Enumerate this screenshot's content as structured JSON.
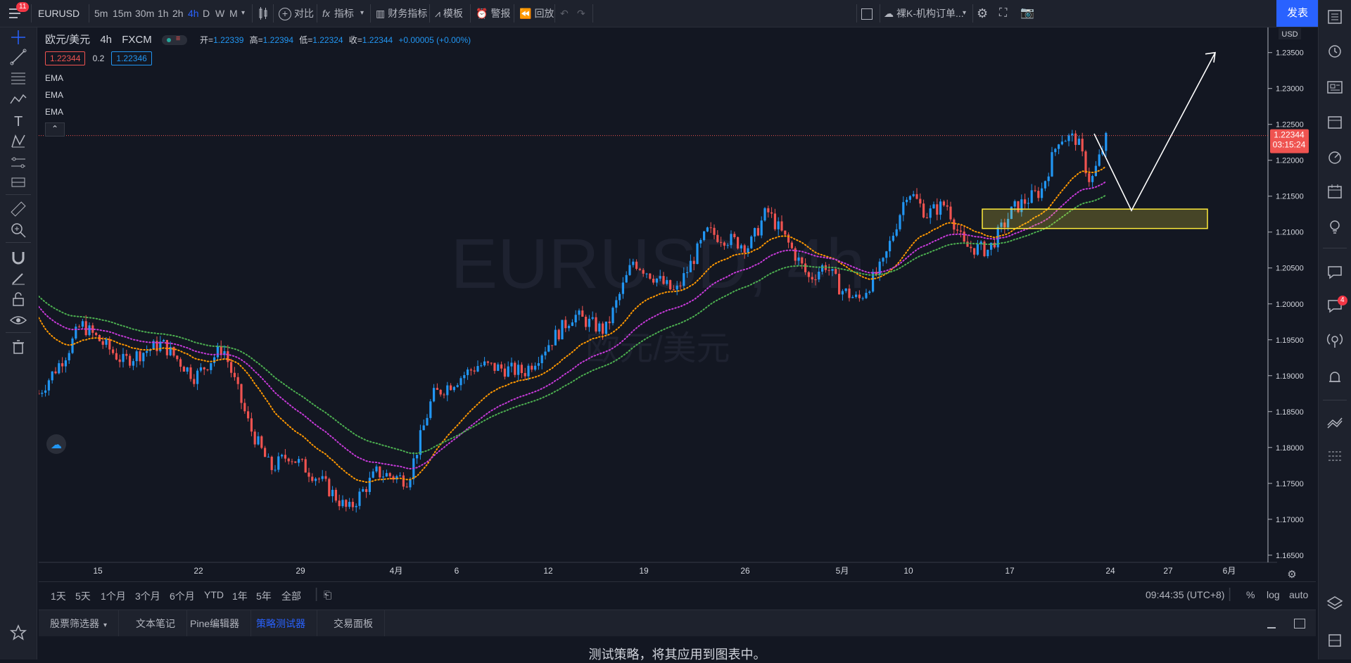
{
  "topbar": {
    "menu_badge": "11",
    "symbol": "EURUSD",
    "intervals": [
      "5m",
      "15m",
      "30m",
      "1h",
      "2h",
      "4h",
      "D",
      "W",
      "M"
    ],
    "active_interval": "4h",
    "compare": "对比",
    "indicators": "指标",
    "financials": "财务指标",
    "templates": "模板",
    "alert": "警报",
    "replay": "回放",
    "layout_name": "裸K-机构订单...",
    "publish": "发表"
  },
  "legend": {
    "title": "欧元/美元",
    "interval": "4h",
    "exchange": "FXCM",
    "open_label": "开=",
    "open": "1.22339",
    "high_label": "高=",
    "high": "1.22394",
    "low_label": "低=",
    "low": "1.22324",
    "close_label": "收=",
    "close": "1.22344",
    "change": "+0.00005 (+0.00%)",
    "bid": "1.22344",
    "spread": "0.2",
    "ask": "1.22346",
    "indicators": [
      "EMA",
      "EMA",
      "EMA"
    ]
  },
  "watermark": {
    "line1": "EURUSD, 4h",
    "line2": "欧元/美元"
  },
  "price_axis": {
    "currency": "USD",
    "ticks": [
      "1.23500",
      "1.23000",
      "1.22500",
      "1.22000",
      "1.21500",
      "1.21000",
      "1.20500",
      "1.20000",
      "1.19500",
      "1.19000",
      "1.18500",
      "1.18000",
      "1.17500",
      "1.17000",
      "1.16500"
    ],
    "last_price": "1.22344",
    "countdown": "03:15:24"
  },
  "time_axis": {
    "ticks": [
      "15",
      "22",
      "29",
      "4月",
      "6",
      "12",
      "19",
      "26",
      "5月",
      "10",
      "17",
      "24",
      "27",
      "6月"
    ]
  },
  "range_bar": {
    "ranges": [
      "1天",
      "5天",
      "1个月",
      "3个月",
      "6个月",
      "YTD",
      "1年",
      "5年",
      "全部"
    ],
    "clock": "09:44:35 (UTC+8)",
    "percent": "%",
    "log": "log",
    "auto": "auto"
  },
  "panel": {
    "tabs": [
      "股票筛选器",
      "文本笔记",
      "Pine编辑器",
      "策略测试器",
      "交易面板"
    ],
    "active_tab": "策略测试器",
    "message": "测试策略，将其应用到图表中。"
  },
  "right_badge": "4",
  "colors": {
    "bg": "#131722",
    "up": "#2196f3",
    "down": "#ef5350",
    "ema_fast": "#ff9800",
    "ema_mid": "#c63ad8",
    "ema_slow": "#4caf50",
    "zone": "#ffeb3b",
    "accent": "#2962ff"
  },
  "chart_data": {
    "type": "candlestick",
    "title": "EURUSD, 4h",
    "ylim": [
      1.164,
      1.2385
    ],
    "ohlc_series": "EUR/USD 4h candles, declines from ~1.1880 to ~1.1710 near 4月, then rises to ~1.2240 around 17-19",
    "ema_series": [
      {
        "name": "EMA",
        "color": "#ff9800"
      },
      {
        "name": "EMA",
        "color": "#c63ad8"
      },
      {
        "name": "EMA",
        "color": "#4caf50"
      }
    ],
    "drawings": [
      "rectangle zone 1.2105-1.2132",
      "zigzag projection 1.2236 → 1.2130 → 1.2350"
    ]
  }
}
